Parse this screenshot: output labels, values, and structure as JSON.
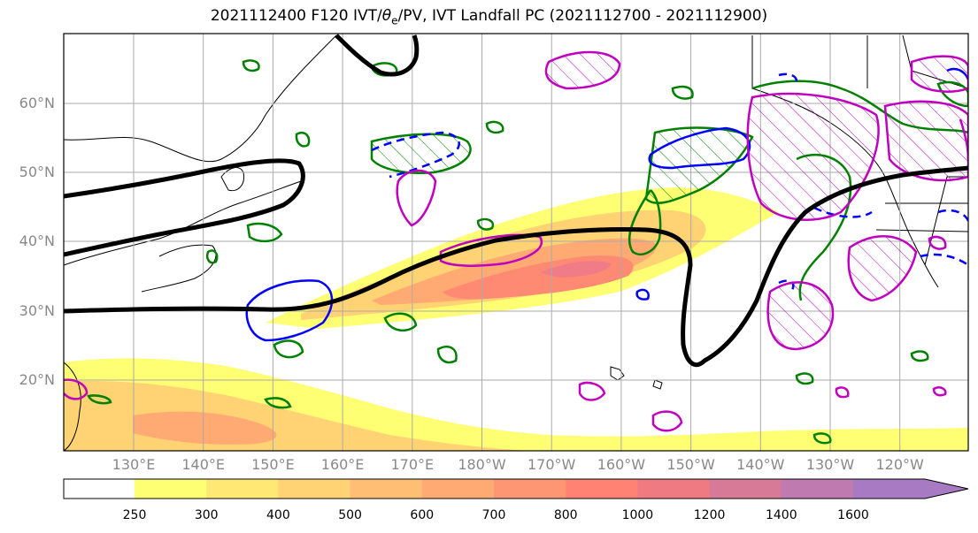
{
  "title": {
    "prefix": "2021112400 F120 IVT/",
    "theta": "θ",
    "theta_sub": "e",
    "suffix": "/PV, IVT Landfall PC (2021112700 - 2021112900)"
  },
  "lat_labels": [
    "60°N",
    "50°N",
    "40°N",
    "30°N",
    "20°N"
  ],
  "lat_values": [
    60,
    50,
    40,
    30,
    20
  ],
  "lon_labels": [
    "130°E",
    "140°E",
    "150°E",
    "160°E",
    "170°E",
    "180°W",
    "170°W",
    "160°W",
    "150°W",
    "140°W",
    "130°W",
    "120°W"
  ],
  "colorbar": {
    "levels": [
      "250",
      "300",
      "400",
      "500",
      "600",
      "700",
      "800",
      "1000",
      "1200",
      "1400",
      "1600"
    ],
    "colors": [
      "#ffff73",
      "#ffe873",
      "#ffd273",
      "#ffbe73",
      "#ffaa73",
      "#ff9673",
      "#ff8273",
      "#ef7a82",
      "#d77a98",
      "#bf7aaf",
      "#a87ac4"
    ]
  },
  "colors": {
    "pv_contour": "#000000",
    "theta_e_contour": "#008000",
    "blue_contour": "#0000ff",
    "magenta_contour": "#bf00bf",
    "coastline": "#000000",
    "gridline": "#aaaaaa"
  }
}
